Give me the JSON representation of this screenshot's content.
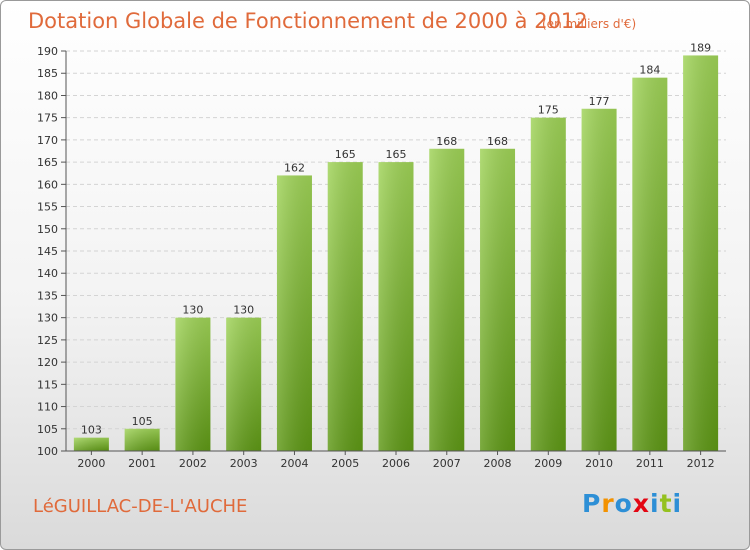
{
  "header": {
    "title": "Dotation Globale de Fonctionnement de 2000 à 2012",
    "unit": "(en milliers d'€)"
  },
  "footer": {
    "commune": "LéGUILLAC-DE-L'AUCHE",
    "logo_letters": [
      "P",
      "r",
      "o",
      "x",
      "i",
      "t",
      "i"
    ]
  },
  "colors": {
    "accent": "#e06a3b",
    "bar_top": "#9fd357",
    "bar_bottom": "#5e9815",
    "logo": [
      "#2d8fd6",
      "#f39200",
      "#2d8fd6",
      "#e30613",
      "#2d8fd6",
      "#95c11f",
      "#2d8fd6"
    ]
  },
  "chart_data": {
    "type": "bar",
    "title": "Dotation Globale de Fonctionnement de 2000 à 2012",
    "subtitle": "(en milliers d'€)",
    "categories": [
      "2000",
      "2001",
      "2002",
      "2003",
      "2004",
      "2005",
      "2006",
      "2007",
      "2008",
      "2009",
      "2010",
      "2011",
      "2012"
    ],
    "values": [
      103,
      105,
      130,
      130,
      162,
      165,
      165,
      168,
      168,
      175,
      177,
      184,
      189
    ],
    "ylim": [
      100,
      190
    ],
    "yticks": [
      100,
      105,
      110,
      115,
      120,
      125,
      130,
      135,
      140,
      145,
      150,
      155,
      160,
      165,
      170,
      175,
      180,
      185,
      190
    ],
    "grid": true,
    "legend": "none"
  }
}
